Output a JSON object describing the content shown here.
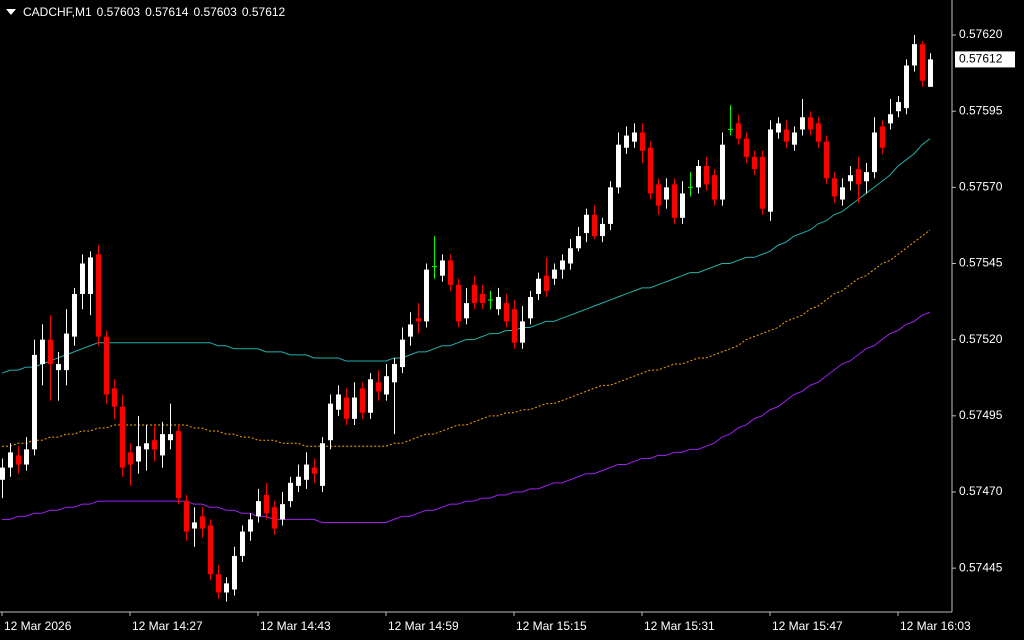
{
  "chart_data": {
    "type": "candlestick",
    "title": "CADCHF,M1",
    "header_values": [
      0.57603,
      0.57614,
      0.57603,
      0.57612
    ],
    "current_price": 0.57612,
    "up_color": "#ffffff",
    "down_color": "#ff0000",
    "doji_color": "#00ff00",
    "ylim": [
      0.574306,
      0.576315
    ],
    "yticks": [
      {
        "value": 0.5762,
        "label": "0.57620"
      },
      0.57595,
      {
        "value": 0.5757,
        "label": "0.57570"
      },
      0.57545,
      {
        "value": 0.5752,
        "label": "0.57520"
      },
      0.57495,
      {
        "value": 0.5747,
        "label": "0.57470"
      },
      0.57445
    ],
    "categories": [
      "12 Mar 2026",
      null,
      null,
      null,
      null,
      null,
      null,
      null,
      null,
      null,
      null,
      null,
      null,
      null,
      null,
      null,
      "12 Mar 14:27",
      null,
      null,
      null,
      null,
      null,
      null,
      null,
      null,
      null,
      null,
      null,
      null,
      null,
      null,
      null,
      "12 Mar 14:43",
      null,
      null,
      null,
      null,
      null,
      null,
      null,
      null,
      null,
      null,
      null,
      null,
      null,
      null,
      null,
      "12 Mar 14:59",
      null,
      null,
      null,
      null,
      null,
      null,
      null,
      null,
      null,
      null,
      null,
      null,
      null,
      null,
      null,
      "12 Mar 15:15",
      null,
      null,
      null,
      null,
      null,
      null,
      null,
      null,
      null,
      null,
      null,
      null,
      null,
      null,
      null,
      "12 Mar 15:31",
      null,
      null,
      null,
      null,
      null,
      null,
      null,
      null,
      null,
      null,
      null,
      null,
      null,
      null,
      null,
      "12 Mar 15:47",
      null,
      null,
      null,
      null,
      null,
      null,
      null,
      null,
      null,
      null,
      null,
      null,
      null,
      null,
      null,
      "12 Mar 16:03",
      null,
      null,
      null,
      null
    ],
    "open": [
      0.57474,
      0.57478,
      0.57482,
      0.57479,
      0.57484,
      0.57512,
      0.5752,
      0.5751,
      0.5751,
      0.57521,
      0.57535,
      0.57535,
      0.57548,
      0.57521,
      0.57504,
      0.57498,
      0.57483,
      0.5748,
      0.57484,
      0.57487,
      0.57482,
      0.57487,
      0.5749,
      0.57467,
      0.57458,
      0.57462,
      0.57459,
      0.57443,
      0.57437,
      0.57438,
      0.57449,
      0.57457,
      0.57462,
      0.57469,
      0.57465,
      0.57461,
      0.57467,
      0.57472,
      0.57474,
      0.57478,
      0.57472,
      0.57487,
      0.57497,
      0.57501,
      0.57494,
      0.57504,
      0.57496,
      0.57506,
      0.57502,
      0.57506,
      0.57511,
      0.57521,
      0.57527,
      0.57526,
      0.57544,
      0.57541,
      0.57546,
      0.57538,
      0.57527,
      0.57538,
      0.57535,
      0.57533,
      0.5753,
      0.57532,
      0.5753,
      0.57519,
      0.57527,
      0.57535,
      0.57541,
      0.5754,
      0.57543,
      0.57545,
      0.5755,
      0.57555,
      0.57561,
      0.57554,
      0.57558,
      0.5757,
      0.57583,
      0.57585,
      0.57588,
      0.57583,
      0.57571,
      0.57566,
      0.57571,
      0.5756,
      0.5757,
      0.5757,
      0.57577,
      0.57574,
      0.57566,
      0.57589,
      0.57591,
      0.57586,
      0.5758,
      0.5758,
      0.57562,
      0.57588,
      0.57589,
      0.57584,
      0.57589,
      0.57593,
      0.57591,
      0.57585,
      0.57573,
      0.57566,
      0.57572,
      0.57576,
      0.57572,
      0.57575,
      0.5759,
      0.57591,
      0.57595,
      0.57596,
      0.5761,
      0.57617,
      0.57603
    ],
    "high": [
      0.57481,
      0.57486,
      0.57485,
      0.57488,
      0.5752,
      0.57525,
      0.57528,
      0.57516,
      0.5753,
      0.57537,
      0.57548,
      0.57549,
      0.57551,
      0.57523,
      0.57507,
      0.57502,
      0.57486,
      0.57495,
      0.57492,
      0.57492,
      0.57493,
      0.57499,
      0.57492,
      0.57469,
      0.57465,
      0.57465,
      0.57461,
      0.57446,
      0.57442,
      0.57452,
      0.57459,
      0.57463,
      0.57471,
      0.57473,
      0.57467,
      0.5747,
      0.57475,
      0.57479,
      0.57483,
      0.57481,
      0.57488,
      0.57502,
      0.57505,
      0.57504,
      0.57506,
      0.57506,
      0.57509,
      0.5751,
      0.57512,
      0.57514,
      0.57524,
      0.57529,
      0.57532,
      0.57545,
      0.57554,
      0.57548,
      0.57548,
      0.5754,
      0.57537,
      0.57541,
      0.57538,
      0.57536,
      0.57537,
      0.57535,
      0.57533,
      0.57531,
      0.57536,
      0.57542,
      0.57547,
      0.57545,
      0.57548,
      0.57553,
      0.57557,
      0.57563,
      0.57564,
      0.5756,
      0.57572,
      0.57588,
      0.5759,
      0.57591,
      0.57591,
      0.57585,
      0.57573,
      0.57573,
      0.57573,
      0.57572,
      0.57575,
      0.57579,
      0.5758,
      0.57576,
      0.57588,
      0.57597,
      0.57594,
      0.57588,
      0.57582,
      0.57582,
      0.57592,
      0.57593,
      0.57592,
      0.5759,
      0.57599,
      0.57595,
      0.57593,
      0.57587,
      0.57575,
      0.57573,
      0.57577,
      0.5758,
      0.57578,
      0.57593,
      0.57592,
      0.57599,
      0.576,
      0.57612,
      0.5762,
      0.57618,
      0.57614
    ],
    "low": [
      0.57468,
      0.57475,
      0.57476,
      0.57477,
      0.57482,
      0.57505,
      0.575,
      0.575,
      0.57505,
      0.57518,
      0.5753,
      0.57528,
      0.57518,
      0.57499,
      0.57494,
      0.57475,
      0.57472,
      0.57476,
      0.57477,
      0.5748,
      0.57478,
      0.57484,
      0.57466,
      0.57454,
      0.57452,
      0.57455,
      0.57441,
      0.57435,
      0.57434,
      0.57436,
      0.57447,
      0.57454,
      0.5746,
      0.57461,
      0.57456,
      0.57459,
      0.57465,
      0.5747,
      0.57471,
      0.57473,
      0.5747,
      0.57484,
      0.57495,
      0.57492,
      0.57492,
      0.57494,
      0.57494,
      0.575,
      0.575,
      0.57489,
      0.57509,
      0.57518,
      0.57522,
      0.57524,
      0.5754,
      0.57539,
      0.57536,
      0.57524,
      0.57525,
      0.5753,
      0.5753,
      0.5753,
      0.57528,
      0.57524,
      0.57517,
      0.57517,
      0.57525,
      0.57533,
      0.57534,
      0.57538,
      0.5754,
      0.57543,
      0.57549,
      0.57552,
      0.57553,
      0.57552,
      0.57556,
      0.57568,
      0.57581,
      0.57583,
      0.57578,
      0.57566,
      0.57561,
      0.57563,
      0.57558,
      0.57558,
      0.57567,
      0.57568,
      0.57569,
      0.57564,
      0.57564,
      0.57587,
      0.57584,
      0.57578,
      0.57574,
      0.57561,
      0.57559,
      0.57586,
      0.57583,
      0.57582,
      0.57587,
      0.57587,
      0.57583,
      0.57571,
      0.57565,
      0.57564,
      0.57569,
      0.57565,
      0.57568,
      0.57573,
      0.57581,
      0.57589,
      0.57593,
      0.57594,
      0.57608,
      0.57603,
      0.57603
    ],
    "close": [
      0.57478,
      0.57483,
      0.57479,
      0.57484,
      0.57515,
      0.5752,
      0.57512,
      0.57512,
      0.57522,
      0.57535,
      0.57545,
      0.57547,
      0.57521,
      0.57502,
      0.57498,
      0.57478,
      0.57479,
      0.57485,
      0.57486,
      0.57484,
      0.57489,
      0.57489,
      0.57468,
      0.57457,
      0.5746,
      0.57458,
      0.57443,
      0.57437,
      0.5744,
      0.57449,
      0.57457,
      0.57461,
      0.57467,
      0.57463,
      0.57458,
      0.57466,
      0.57473,
      0.57475,
      0.57479,
      0.57476,
      0.57486,
      0.57499,
      0.57502,
      0.57494,
      0.57501,
      0.57496,
      0.57507,
      0.57503,
      0.57508,
      0.57512,
      0.5752,
      0.57525,
      0.57526,
      0.57543,
      0.57544,
      0.57546,
      0.57538,
      0.57526,
      0.57532,
      0.57532,
      0.57532,
      0.57533,
      0.57534,
      0.57526,
      0.57519,
      0.57526,
      0.57534,
      0.5754,
      0.57536,
      0.57543,
      0.57546,
      0.5755,
      0.57554,
      0.57561,
      0.57554,
      0.57558,
      0.5757,
      0.57584,
      0.57587,
      0.57588,
      0.57582,
      0.57568,
      0.57564,
      0.5757,
      0.5756,
      0.57568,
      0.5757,
      0.57577,
      0.57571,
      0.57566,
      0.57584,
      0.57589,
      0.57586,
      0.5758,
      0.57576,
      0.57563,
      0.57589,
      0.57591,
      0.57585,
      0.57588,
      0.57593,
      0.57589,
      0.57585,
      0.57573,
      0.57567,
      0.5757,
      0.57574,
      0.57571,
      0.57575,
      0.57588,
      0.57583,
      0.57594,
      0.57598,
      0.5761,
      0.57617,
      0.57605,
      0.57612
    ],
    "lines": [
      {
        "color": "#20b2aa",
        "style": "solid",
        "values": [
          0.57509,
          0.5751,
          0.5751,
          0.57511,
          0.57511,
          0.57512,
          0.57513,
          0.57514,
          0.57515,
          0.57516,
          0.57517,
          0.57518,
          0.57519,
          0.57519,
          0.57519,
          0.57519,
          0.57519,
          0.57519,
          0.57519,
          0.57519,
          0.57519,
          0.57519,
          0.57519,
          0.57519,
          0.57519,
          0.57519,
          0.57519,
          0.57518,
          0.57518,
          0.57517,
          0.57517,
          0.57517,
          0.57517,
          0.57516,
          0.57516,
          0.57516,
          0.57515,
          0.57515,
          0.57515,
          0.57514,
          0.57514,
          0.57514,
          0.57514,
          0.57513,
          0.57513,
          0.57513,
          0.57513,
          0.57513,
          0.57513,
          0.57514,
          0.57514,
          0.57515,
          0.57516,
          0.57516,
          0.57517,
          0.57518,
          0.57518,
          0.57519,
          0.5752,
          0.5752,
          0.57521,
          0.57522,
          0.57522,
          0.57523,
          0.57523,
          0.57524,
          0.57524,
          0.57525,
          0.57526,
          0.57526,
          0.57527,
          0.57528,
          0.57529,
          0.5753,
          0.57531,
          0.57532,
          0.57533,
          0.57534,
          0.57535,
          0.57536,
          0.57537,
          0.57537,
          0.57538,
          0.57539,
          0.5754,
          0.57541,
          0.57542,
          0.57542,
          0.57543,
          0.57544,
          0.57545,
          0.57545,
          0.57546,
          0.57547,
          0.57547,
          0.57548,
          0.57549,
          0.57551,
          0.57552,
          0.57554,
          0.57555,
          0.57556,
          0.57558,
          0.57559,
          0.57561,
          0.57562,
          0.57564,
          0.57566,
          0.57568,
          0.5757,
          0.57572,
          0.57574,
          0.57577,
          0.57579,
          0.57581,
          0.57584,
          0.57586
        ]
      },
      {
        "color": "#ffa500",
        "style": "dotted",
        "values": [
          0.57485,
          0.57485,
          0.57486,
          0.57486,
          0.57487,
          0.57487,
          0.57488,
          0.57488,
          0.57489,
          0.57489,
          0.5749,
          0.5749,
          0.57491,
          0.57491,
          0.57492,
          0.57492,
          0.57492,
          0.57492,
          0.57492,
          0.57492,
          0.57492,
          0.57492,
          0.57492,
          0.57492,
          0.57491,
          0.57491,
          0.5749,
          0.5749,
          0.57489,
          0.57489,
          0.57488,
          0.57488,
          0.57487,
          0.57487,
          0.57487,
          0.57486,
          0.57486,
          0.57486,
          0.57485,
          0.57485,
          0.57485,
          0.57485,
          0.57485,
          0.57485,
          0.57485,
          0.57485,
          0.57485,
          0.57485,
          0.57485,
          0.57486,
          0.57486,
          0.57487,
          0.57488,
          0.57489,
          0.57489,
          0.5749,
          0.57491,
          0.57492,
          0.57492,
          0.57493,
          0.57494,
          0.57495,
          0.57495,
          0.57496,
          0.57496,
          0.57497,
          0.57497,
          0.57498,
          0.57499,
          0.57499,
          0.575,
          0.57501,
          0.57502,
          0.57503,
          0.57504,
          0.57505,
          0.57505,
          0.57506,
          0.57507,
          0.57508,
          0.57509,
          0.5751,
          0.5751,
          0.57511,
          0.57512,
          0.57512,
          0.57513,
          0.57514,
          0.57514,
          0.57515,
          0.57516,
          0.57517,
          0.57518,
          0.5752,
          0.57521,
          0.57522,
          0.57523,
          0.57524,
          0.57526,
          0.57527,
          0.57528,
          0.5753,
          0.57531,
          0.57533,
          0.57535,
          0.57536,
          0.57538,
          0.5754,
          0.57541,
          0.57543,
          0.57545,
          0.57546,
          0.57548,
          0.5755,
          0.57552,
          0.57554,
          0.57556
        ]
      },
      {
        "color": "#a020f0",
        "style": "solid",
        "values": [
          0.57461,
          0.57461,
          0.57462,
          0.57462,
          0.57463,
          0.57463,
          0.57464,
          0.57464,
          0.57465,
          0.57465,
          0.57466,
          0.57466,
          0.57467,
          0.57467,
          0.57467,
          0.57467,
          0.57467,
          0.57467,
          0.57467,
          0.57467,
          0.57467,
          0.57467,
          0.57467,
          0.57467,
          0.57466,
          0.57466,
          0.57465,
          0.57465,
          0.57464,
          0.57464,
          0.57463,
          0.57463,
          0.57462,
          0.57462,
          0.57461,
          0.57461,
          0.57461,
          0.57461,
          0.57461,
          0.57461,
          0.5746,
          0.5746,
          0.5746,
          0.5746,
          0.5746,
          0.5746,
          0.5746,
          0.5746,
          0.5746,
          0.57461,
          0.57462,
          0.57462,
          0.57463,
          0.57464,
          0.57464,
          0.57465,
          0.57466,
          0.57466,
          0.57467,
          0.57467,
          0.57468,
          0.57468,
          0.57469,
          0.57469,
          0.5747,
          0.5747,
          0.57471,
          0.57471,
          0.57472,
          0.57473,
          0.57473,
          0.57474,
          0.57475,
          0.57476,
          0.57476,
          0.57477,
          0.57478,
          0.57479,
          0.57479,
          0.5748,
          0.57481,
          0.57481,
          0.57482,
          0.57482,
          0.57483,
          0.57483,
          0.57484,
          0.57484,
          0.57485,
          0.57486,
          0.57488,
          0.57489,
          0.57491,
          0.57492,
          0.57494,
          0.57495,
          0.57497,
          0.57498,
          0.575,
          0.57502,
          0.57503,
          0.57505,
          0.57506,
          0.57508,
          0.5751,
          0.57512,
          0.57513,
          0.57515,
          0.57517,
          0.57518,
          0.5752,
          0.57522,
          0.57523,
          0.57525,
          0.57526,
          0.57528,
          0.57529
        ]
      }
    ]
  }
}
